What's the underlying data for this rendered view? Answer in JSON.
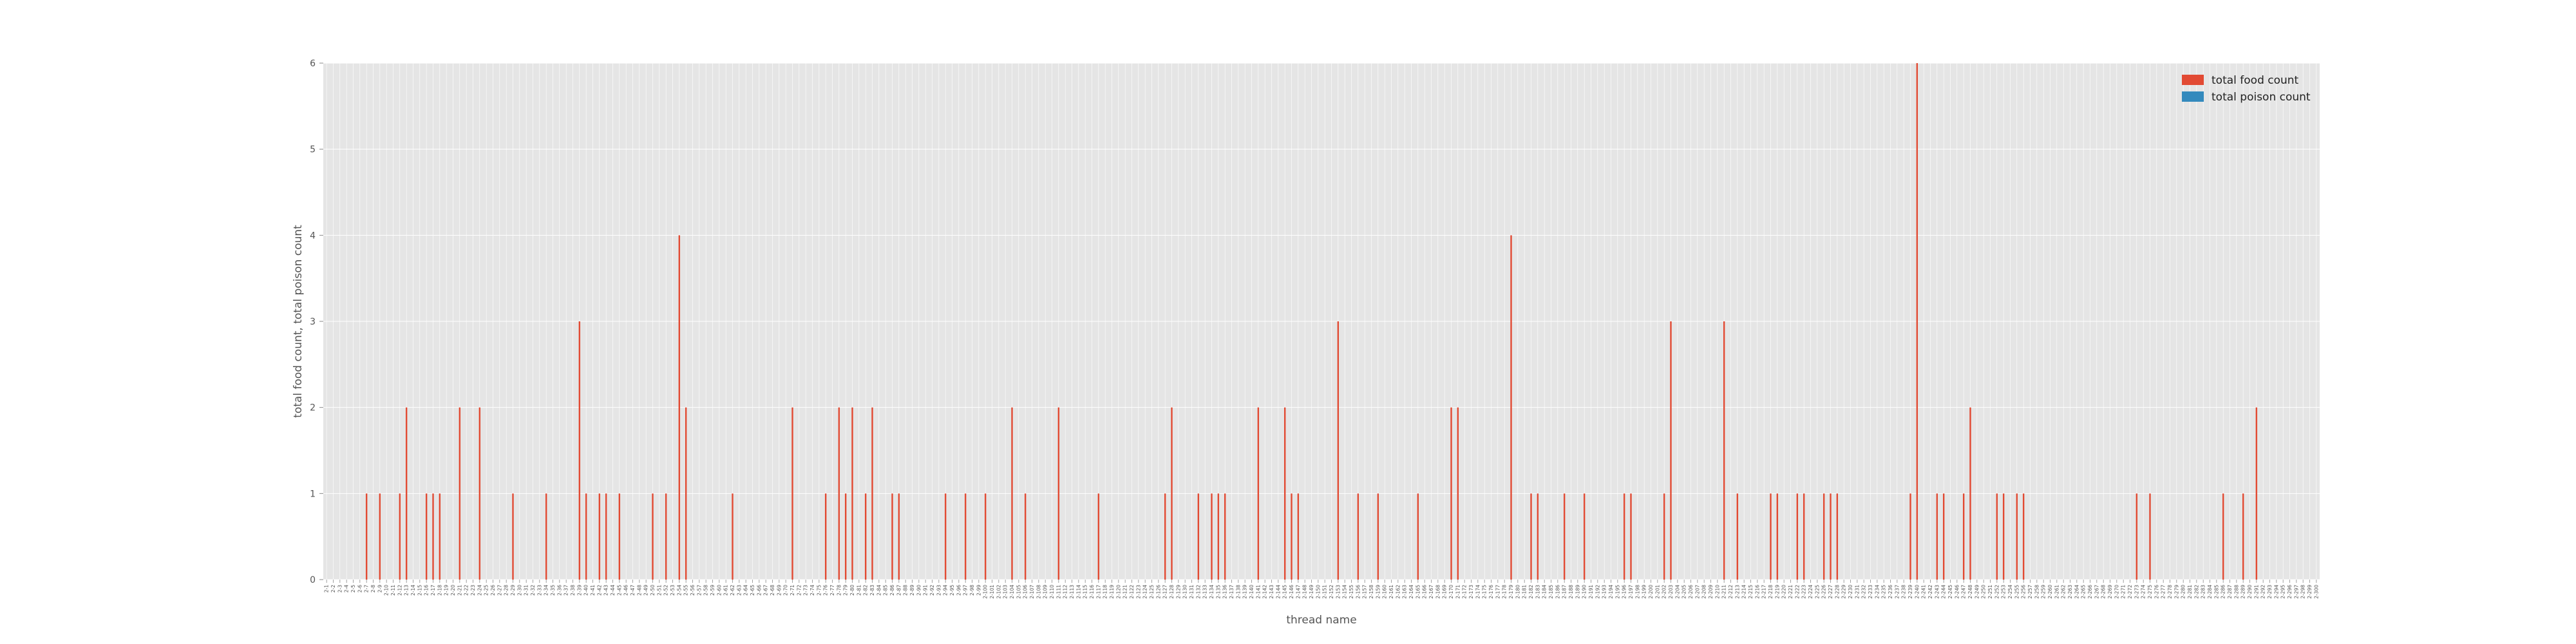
{
  "chart_data": {
    "type": "bar",
    "title": "",
    "xlabel": "thread name",
    "ylabel": "total food count, total poison count",
    "ylim": [
      0,
      6
    ],
    "yticks": [
      0,
      1,
      2,
      3,
      4,
      5,
      6
    ],
    "grid": true,
    "legend_position": "top-right",
    "colors": {
      "food": "#e24a33",
      "poison": "#348abd",
      "plot_bg": "#e5e5e5",
      "grid": "#ffffff"
    },
    "categories": [
      "2-1",
      "2-2",
      "2-3",
      "2-4",
      "2-5",
      "2-6",
      "2-7",
      "2-8",
      "2-9",
      "2-10",
      "2-11",
      "2-12",
      "2-13",
      "2-14",
      "2-15",
      "2-16",
      "2-17",
      "2-18",
      "2-19",
      "2-20",
      "2-21",
      "2-22",
      "2-23",
      "2-24",
      "2-25",
      "2-26",
      "2-27",
      "2-28",
      "2-29",
      "2-30",
      "2-31",
      "2-32",
      "2-33",
      "2-34",
      "2-35",
      "2-36",
      "2-37",
      "2-38",
      "2-39",
      "2-40",
      "2-41",
      "2-42",
      "2-43",
      "2-44",
      "2-45",
      "2-46",
      "2-47",
      "2-48",
      "2-49",
      "2-50",
      "2-51",
      "2-52",
      "2-53",
      "2-54",
      "2-55",
      "2-56",
      "2-57",
      "2-58",
      "2-59",
      "2-60",
      "2-61",
      "2-62",
      "2-63",
      "2-64",
      "2-65",
      "2-66",
      "2-67",
      "2-68",
      "2-69",
      "2-70",
      "2-71",
      "2-72",
      "2-73",
      "2-74",
      "2-75",
      "2-76",
      "2-77",
      "2-78",
      "2-79",
      "2-80",
      "2-81",
      "2-82",
      "2-83",
      "2-84",
      "2-85",
      "2-86",
      "2-87",
      "2-88",
      "2-89",
      "2-90",
      "2-91",
      "2-92",
      "2-93",
      "2-94",
      "2-95",
      "2-96",
      "2-97",
      "2-98",
      "2-99",
      "2-100",
      "2-101",
      "2-102",
      "2-103",
      "2-104",
      "2-105",
      "2-106",
      "2-107",
      "2-108",
      "2-109",
      "2-110",
      "2-111",
      "2-112",
      "2-113",
      "2-114",
      "2-115",
      "2-116",
      "2-117",
      "2-118",
      "2-119",
      "2-120",
      "2-121",
      "2-122",
      "2-123",
      "2-124",
      "2-125",
      "2-126",
      "2-127",
      "2-128",
      "2-129",
      "2-130",
      "2-131",
      "2-132",
      "2-133",
      "2-134",
      "2-135",
      "2-136",
      "2-137",
      "2-138",
      "2-139",
      "2-140",
      "2-141",
      "2-142",
      "2-143",
      "2-144",
      "2-145",
      "2-146",
      "2-147",
      "2-148",
      "2-149",
      "2-150",
      "2-151",
      "2-152",
      "2-153",
      "2-154",
      "2-155",
      "2-156",
      "2-157",
      "2-158",
      "2-159",
      "2-160",
      "2-161",
      "2-162",
      "2-163",
      "2-164",
      "2-165",
      "2-166",
      "2-167",
      "2-168",
      "2-169",
      "2-170",
      "2-171",
      "2-172",
      "2-173",
      "2-174",
      "2-175",
      "2-176",
      "2-177",
      "2-178",
      "2-179",
      "2-180",
      "2-181",
      "2-182",
      "2-183",
      "2-184",
      "2-185",
      "2-186",
      "2-187",
      "2-188",
      "2-189",
      "2-190",
      "2-191",
      "2-192",
      "2-193",
      "2-194",
      "2-195",
      "2-196",
      "2-197",
      "2-198",
      "2-199",
      "2-200",
      "2-201",
      "2-202",
      "2-203",
      "2-204",
      "2-205",
      "2-206",
      "2-207",
      "2-208",
      "2-209",
      "2-210",
      "2-211",
      "2-212",
      "2-213",
      "2-214",
      "2-215",
      "2-216",
      "2-217",
      "2-218",
      "2-219",
      "2-220",
      "2-221",
      "2-222",
      "2-223",
      "2-224",
      "2-225",
      "2-226",
      "2-227",
      "2-228",
      "2-229",
      "2-230",
      "2-231",
      "2-232",
      "2-233",
      "2-234",
      "2-235",
      "2-236",
      "2-237",
      "2-238",
      "2-239",
      "2-240",
      "2-241",
      "2-242",
      "2-243",
      "2-244",
      "2-245",
      "2-246",
      "2-247",
      "2-248",
      "2-249",
      "2-250",
      "2-251",
      "2-252",
      "2-253",
      "2-254",
      "2-255",
      "2-256",
      "2-257",
      "2-258",
      "2-259",
      "2-260",
      "2-261",
      "2-262",
      "2-263",
      "2-264",
      "2-265",
      "2-266",
      "2-267",
      "2-268",
      "2-269",
      "2-270",
      "2-271",
      "2-272",
      "2-273",
      "2-274",
      "2-275",
      "2-276",
      "2-277",
      "2-278",
      "2-279",
      "2-280",
      "2-281",
      "2-282",
      "2-283",
      "2-284",
      "2-285",
      "2-286",
      "2-287",
      "2-288",
      "2-289",
      "2-290",
      "2-291",
      "2-292",
      "2-293",
      "2-294",
      "2-295",
      "2-296",
      "2-297",
      "2-298",
      "2-299",
      "2-300"
    ],
    "series": [
      {
        "name": "total food count",
        "values": [
          0,
          0,
          0,
          0,
          0,
          0,
          1,
          0,
          1,
          0,
          0,
          1,
          2,
          0,
          0,
          1,
          1,
          1,
          0,
          0,
          2,
          0,
          0,
          2,
          0,
          0,
          0,
          0,
          1,
          0,
          0,
          0,
          0,
          1,
          0,
          0,
          0,
          0,
          3,
          1,
          0,
          1,
          1,
          0,
          1,
          0,
          0,
          0,
          0,
          1,
          0,
          1,
          0,
          4,
          2,
          0,
          0,
          0,
          0,
          0,
          0,
          1,
          0,
          0,
          0,
          0,
          0,
          0,
          0,
          0,
          2,
          0,
          0,
          0,
          0,
          1,
          0,
          2,
          1,
          2,
          0,
          1,
          2,
          0,
          0,
          1,
          1,
          0,
          0,
          0,
          0,
          0,
          0,
          1,
          0,
          0,
          1,
          0,
          0,
          1,
          0,
          0,
          0,
          2,
          0,
          1,
          0,
          0,
          0,
          0,
          2,
          0,
          0,
          0,
          0,
          0,
          1,
          0,
          0,
          0,
          0,
          0,
          0,
          0,
          0,
          0,
          1,
          2,
          0,
          0,
          0,
          1,
          0,
          1,
          1,
          1,
          0,
          0,
          0,
          0,
          2,
          0,
          0,
          0,
          2,
          1,
          1,
          0,
          0,
          0,
          0,
          0,
          3,
          0,
          0,
          1,
          0,
          0,
          1,
          0,
          0,
          0,
          0,
          0,
          1,
          0,
          0,
          0,
          0,
          2,
          2,
          0,
          0,
          0,
          0,
          0,
          0,
          0,
          4,
          0,
          0,
          1,
          1,
          0,
          0,
          0,
          1,
          0,
          0,
          1,
          0,
          0,
          0,
          0,
          0,
          1,
          1,
          0,
          0,
          0,
          0,
          1,
          3,
          0,
          0,
          0,
          0,
          0,
          0,
          0,
          3,
          0,
          1,
          0,
          0,
          0,
          0,
          1,
          1,
          0,
          0,
          1,
          1,
          0,
          0,
          1,
          1,
          1,
          0,
          0,
          0,
          0,
          0,
          0,
          0,
          0,
          0,
          0,
          1,
          6,
          0,
          0,
          1,
          1,
          0,
          0,
          1,
          2,
          0,
          0,
          0,
          1,
          1,
          0,
          1,
          1,
          0,
          0,
          0,
          0,
          0,
          0,
          0,
          0,
          0,
          0,
          0,
          0,
          0,
          0,
          0,
          0,
          1,
          0,
          1,
          0,
          0,
          0,
          0,
          0,
          0,
          0,
          0,
          0,
          0,
          1,
          0,
          0,
          1,
          0,
          2,
          0,
          0,
          0,
          0,
          0,
          0,
          0,
          0,
          0
        ]
      },
      {
        "name": "total poison count",
        "values": [
          0,
          0,
          0,
          0,
          0,
          0,
          0,
          0,
          0,
          0,
          0,
          0,
          0,
          0,
          0,
          0,
          0,
          0,
          0,
          0,
          0,
          0,
          0,
          0,
          0,
          0,
          0,
          0,
          0,
          0,
          0,
          0,
          0,
          0,
          0,
          0,
          0,
          0,
          0,
          0,
          0,
          0,
          0,
          0,
          0,
          0,
          0,
          0,
          0,
          0,
          0,
          0,
          0,
          0,
          0,
          0,
          0,
          0,
          0,
          0,
          0,
          0,
          0,
          0,
          0,
          0,
          0,
          0,
          0,
          0,
          0,
          0,
          0,
          0,
          0,
          0,
          0,
          0,
          0,
          0,
          0,
          0,
          0,
          0,
          0,
          0,
          0,
          0,
          0,
          0,
          0,
          0,
          0,
          0,
          0,
          0,
          0,
          0,
          0,
          0,
          0,
          0,
          0,
          0,
          0,
          0,
          0,
          0,
          0,
          0,
          0,
          0,
          0,
          0,
          0,
          0,
          0,
          0,
          0,
          0,
          0,
          0,
          0,
          0,
          0,
          0,
          0,
          0,
          0,
          0,
          0,
          0,
          0,
          0,
          0,
          0,
          0,
          0,
          0,
          0,
          0,
          0,
          0,
          0,
          0,
          0,
          0,
          0,
          0,
          0,
          0,
          0,
          0,
          0,
          0,
          0,
          0,
          0,
          0,
          0,
          0,
          0,
          0,
          0,
          0,
          0,
          0,
          0,
          0,
          0,
          0,
          0,
          0,
          0,
          0,
          0,
          0,
          0,
          0,
          0,
          0,
          0,
          0,
          0,
          0,
          0,
          0,
          0,
          0,
          0,
          0,
          0,
          0,
          0,
          0,
          0,
          0,
          0,
          0,
          0,
          0,
          0,
          0,
          0,
          0,
          0,
          0,
          0,
          0,
          0,
          0,
          0,
          0,
          0,
          0,
          0,
          0,
          0,
          0,
          0,
          0,
          0,
          0,
          0,
          0,
          0,
          0,
          0,
          0,
          0,
          0,
          0,
          0,
          0,
          0,
          0,
          0,
          0,
          0,
          0,
          0,
          0,
          0,
          0,
          0,
          0,
          0,
          0,
          0,
          0,
          0,
          0,
          0,
          0,
          0,
          0,
          0,
          0,
          0,
          0,
          0,
          0,
          0,
          0,
          0,
          0,
          0,
          0,
          0,
          0,
          0,
          0,
          0,
          0,
          0,
          0,
          0,
          0,
          0,
          0,
          0,
          0,
          0,
          0,
          0,
          0,
          0,
          0,
          0,
          0,
          0,
          0,
          0,
          0,
          0,
          0,
          0,
          0,
          0,
          0
        ]
      }
    ]
  }
}
